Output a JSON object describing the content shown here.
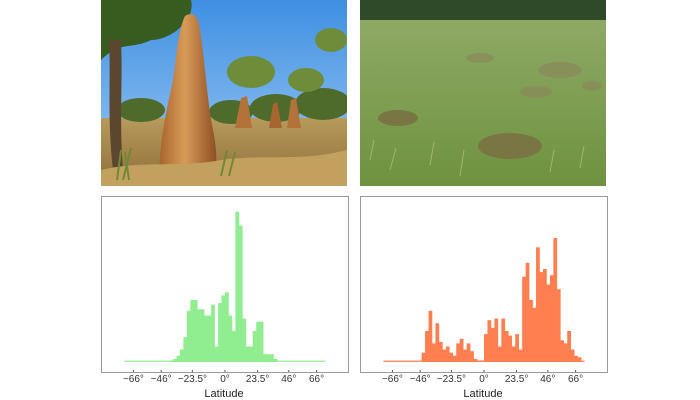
{
  "photos": [
    {
      "subject": "tall cathedral termite mounds in savanna woodland"
    },
    {
      "subject": "low grass-covered termite mounds in grassland"
    }
  ],
  "chart_data": [
    {
      "type": "bar",
      "title": "",
      "xlabel": "Latitude",
      "ylabel": "",
      "xlim": [
        -80,
        80
      ],
      "ylim": [
        0,
        1
      ],
      "color": "#90EE90",
      "xticks": [
        -66,
        -46,
        -23.5,
        0,
        23.5,
        46,
        66
      ],
      "xtick_labels": [
        "−66°",
        "−46°",
        "−23.5°",
        "0°",
        "23.5°",
        "46°",
        "66°"
      ],
      "bin_width": 2.5,
      "tails": [
        [
          -72.5,
          0.005
        ],
        [
          72.5,
          0.005
        ]
      ],
      "bins": [
        [
          -40,
          0.01
        ],
        [
          -37.5,
          0.02
        ],
        [
          -35,
          0.04
        ],
        [
          -32.5,
          0.08
        ],
        [
          -30,
          0.16
        ],
        [
          -27.5,
          0.33
        ],
        [
          -25,
          0.4
        ],
        [
          -22.5,
          0.4
        ],
        [
          -20,
          0.34
        ],
        [
          -17.5,
          0.34
        ],
        [
          -15,
          0.3
        ],
        [
          -12.5,
          0.3
        ],
        [
          -10,
          0.37
        ],
        [
          -7.5,
          0.1
        ],
        [
          -5,
          0.38
        ],
        [
          -2.5,
          0.43
        ],
        [
          0,
          0.45
        ],
        [
          2.5,
          0.3
        ],
        [
          5,
          0.2
        ],
        [
          7.5,
          0.97
        ],
        [
          10,
          0.88
        ],
        [
          12.5,
          0.28
        ],
        [
          15,
          0.1
        ],
        [
          17.5,
          0.1
        ],
        [
          20,
          0.2
        ],
        [
          22.5,
          0.26
        ],
        [
          25,
          0.26
        ],
        [
          27.5,
          0.05
        ],
        [
          30,
          0.05
        ],
        [
          32.5,
          0.05
        ],
        [
          35,
          0.02
        ]
      ]
    },
    {
      "type": "bar",
      "title": "",
      "xlabel": "Latitude",
      "ylabel": "",
      "xlim": [
        -80,
        80
      ],
      "ylim": [
        0,
        1
      ],
      "color": "#FF7F50",
      "xticks": [
        -66,
        -46,
        -23.5,
        0,
        23.5,
        46,
        66
      ],
      "xtick_labels": [
        "−66°",
        "−46°",
        "−23.5°",
        "0°",
        "23.5°",
        "46°",
        "66°"
      ],
      "bin_width": 2.5,
      "tails": [
        [
          -72.5,
          0.005
        ],
        [
          72.5,
          0.005
        ]
      ],
      "bins": [
        [
          -45,
          0.06
        ],
        [
          -42.5,
          0.2
        ],
        [
          -40,
          0.33
        ],
        [
          -37.5,
          0.12
        ],
        [
          -35,
          0.25
        ],
        [
          -32.5,
          0.13
        ],
        [
          -30,
          0.08
        ],
        [
          -27.5,
          0.1
        ],
        [
          -25,
          0.06
        ],
        [
          -22.5,
          0.04
        ],
        [
          -20,
          0.12
        ],
        [
          -17.5,
          0.15
        ],
        [
          -15,
          0.08
        ],
        [
          -12.5,
          0.12
        ],
        [
          -10,
          0.07
        ],
        [
          -7.5,
          0.02
        ],
        [
          -5,
          0.01
        ],
        [
          -2.5,
          0.01
        ],
        [
          0,
          0.18
        ],
        [
          2.5,
          0.27
        ],
        [
          5,
          0.22
        ],
        [
          7.5,
          0.28
        ],
        [
          10,
          0.1
        ],
        [
          12.5,
          0.28
        ],
        [
          15,
          0.2
        ],
        [
          17.5,
          0.17
        ],
        [
          20,
          0.1
        ],
        [
          22.5,
          0.18
        ],
        [
          25,
          0.08
        ],
        [
          27.5,
          0.55
        ],
        [
          30,
          0.64
        ],
        [
          32.5,
          0.4
        ],
        [
          35,
          0.35
        ],
        [
          37.5,
          0.74
        ],
        [
          40,
          0.58
        ],
        [
          42.5,
          0.6
        ],
        [
          45,
          0.5
        ],
        [
          47.5,
          0.56
        ],
        [
          50,
          0.8
        ],
        [
          52.5,
          0.47
        ],
        [
          55,
          0.14
        ],
        [
          57.5,
          0.12
        ],
        [
          60,
          0.2
        ],
        [
          62.5,
          0.08
        ],
        [
          65,
          0.04
        ],
        [
          67.5,
          0.03
        ]
      ]
    }
  ]
}
